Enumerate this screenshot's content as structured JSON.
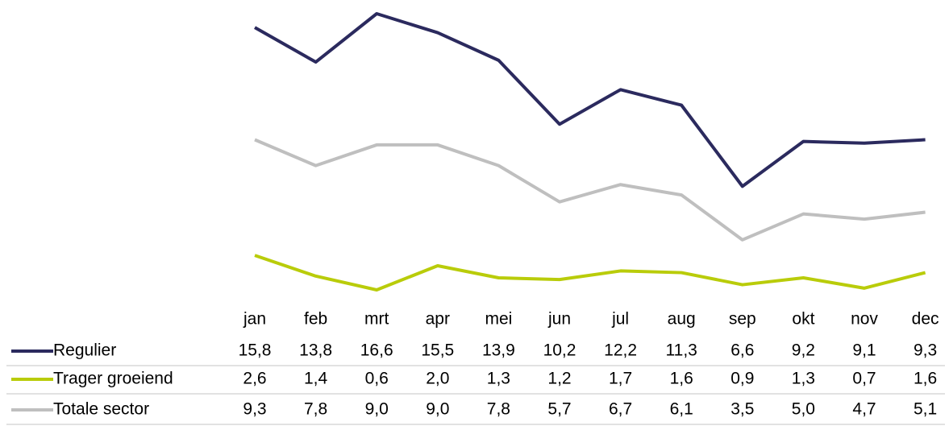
{
  "chart_data": {
    "type": "line",
    "categories": [
      "jan",
      "feb",
      "mrt",
      "apr",
      "mei",
      "jun",
      "jul",
      "aug",
      "sep",
      "okt",
      "nov",
      "dec"
    ],
    "series": [
      {
        "name": "Regulier",
        "color": "#2b2a5e",
        "values": [
          15.8,
          13.8,
          16.6,
          15.5,
          13.9,
          10.2,
          12.2,
          11.3,
          6.6,
          9.2,
          9.1,
          9.3
        ],
        "value_labels": [
          "15,8",
          "13,8",
          "16,6",
          "15,5",
          "13,9",
          "10,2",
          "12,2",
          "11,3",
          "6,6",
          "9,2",
          "9,1",
          "9,3"
        ]
      },
      {
        "name": "Trager groeiend",
        "color": "#b9cc0a",
        "values": [
          2.6,
          1.4,
          0.6,
          2.0,
          1.3,
          1.2,
          1.7,
          1.6,
          0.9,
          1.3,
          0.7,
          1.6
        ],
        "value_labels": [
          "2,6",
          "1,4",
          "0,6",
          "2,0",
          "1,3",
          "1,2",
          "1,7",
          "1,6",
          "0,9",
          "1,3",
          "0,7",
          "1,6"
        ]
      },
      {
        "name": "Totale sector",
        "color": "#bfbfbf",
        "values": [
          9.3,
          7.8,
          9.0,
          9.0,
          7.8,
          5.7,
          6.7,
          6.1,
          3.5,
          5.0,
          4.7,
          5.1
        ],
        "value_labels": [
          "9,3",
          "7,8",
          "9,0",
          "9,0",
          "7,8",
          "5,7",
          "6,7",
          "6,1",
          "3,5",
          "5,0",
          "4,7",
          "5,1"
        ]
      }
    ]
  }
}
